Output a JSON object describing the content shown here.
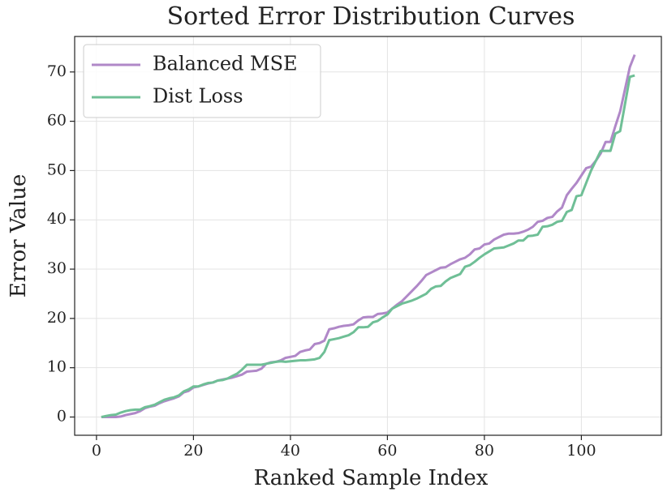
{
  "chart_data": {
    "type": "line",
    "title": "Sorted Error Distribution Curves",
    "xlabel": "Ranked Sample Index",
    "ylabel": "Error Value",
    "x": [
      1,
      2,
      3,
      4,
      5,
      6,
      7,
      8,
      9,
      10,
      11,
      12,
      13,
      14,
      15,
      16,
      17,
      18,
      19,
      20,
      21,
      22,
      23,
      24,
      25,
      26,
      27,
      28,
      29,
      30,
      31,
      32,
      33,
      34,
      35,
      36,
      37,
      38,
      39,
      40,
      41,
      42,
      43,
      44,
      45,
      46,
      47,
      48,
      49,
      50,
      51,
      52,
      53,
      54,
      55,
      56,
      57,
      58,
      59,
      60,
      61,
      62,
      63,
      64,
      65,
      66,
      67,
      68,
      69,
      70,
      71,
      72,
      73,
      74,
      75,
      76,
      77,
      78,
      79,
      80,
      81,
      82,
      83,
      84,
      85,
      86,
      87,
      88,
      89,
      90,
      91,
      92,
      93,
      94,
      95,
      96,
      97,
      98,
      99,
      100,
      101,
      102,
      103,
      104,
      105,
      106,
      107,
      108,
      109,
      110,
      111
    ],
    "series": [
      {
        "name": "Balanced MSE",
        "color": "#b088c8",
        "values": [
          0,
          0,
          0,
          0,
          0.1,
          0.4,
          0.6,
          0.8,
          1.2,
          1.8,
          2.1,
          2.3,
          2.8,
          3.2,
          3.5,
          3.8,
          4.2,
          5.0,
          5.3,
          6.0,
          6.2,
          6.5,
          6.8,
          7.0,
          7.4,
          7.6,
          7.8,
          8.0,
          8.3,
          8.6,
          9.2,
          9.3,
          9.4,
          9.8,
          10.8,
          11.1,
          11.2,
          11.5,
          12.0,
          12.2,
          12.4,
          13.2,
          13.5,
          13.7,
          14.8,
          15.0,
          15.5,
          17.8,
          18.0,
          18.3,
          18.5,
          18.6,
          18.8,
          19.6,
          20.2,
          20.3,
          20.3,
          20.9,
          21.0,
          21.2,
          22.0,
          22.8,
          23.5,
          24.5,
          25.5,
          26.5,
          27.6,
          28.8,
          29.3,
          29.8,
          30.3,
          30.4,
          31.0,
          31.5,
          32.0,
          32.3,
          33.0,
          34.0,
          34.2,
          35.0,
          35.2,
          36.0,
          36.5,
          37.0,
          37.2,
          37.2,
          37.3,
          37.6,
          38.0,
          38.6,
          39.6,
          39.8,
          40.4,
          40.6,
          41.7,
          42.5,
          45.0,
          46.3,
          47.5,
          49.0,
          50.5,
          50.8,
          52.0,
          53.5,
          55.8,
          55.8,
          59.0,
          62.0,
          66.5,
          71.0,
          73.5
        ]
      },
      {
        "name": "Dist Loss",
        "color": "#6fbf96",
        "values": [
          0,
          0.2,
          0.4,
          0.5,
          0.9,
          1.2,
          1.4,
          1.5,
          1.5,
          2.0,
          2.2,
          2.5,
          3.0,
          3.5,
          3.8,
          4.0,
          4.4,
          5.2,
          5.6,
          6.2,
          6.2,
          6.6,
          6.9,
          7.0,
          7.4,
          7.5,
          7.8,
          8.3,
          8.8,
          9.6,
          10.6,
          10.6,
          10.6,
          10.6,
          10.8,
          11.0,
          11.2,
          11.3,
          11.2,
          11.3,
          11.4,
          11.5,
          11.5,
          11.6,
          11.7,
          12.0,
          13.2,
          15.6,
          15.8,
          16.0,
          16.3,
          16.6,
          17.2,
          18.2,
          18.2,
          18.3,
          19.2,
          19.5,
          20.2,
          20.8,
          22.0,
          22.5,
          23.0,
          23.3,
          23.6,
          24.0,
          24.5,
          25.0,
          26.0,
          26.5,
          26.6,
          27.5,
          28.2,
          28.6,
          29.0,
          30.5,
          30.8,
          31.5,
          32.3,
          33.0,
          33.6,
          34.2,
          34.3,
          34.4,
          34.8,
          35.2,
          35.8,
          35.8,
          36.7,
          36.8,
          37.0,
          38.6,
          38.7,
          39.0,
          39.6,
          39.8,
          41.6,
          42.0,
          44.8,
          45.0,
          47.5,
          50.0,
          52.0,
          54.0,
          54.0,
          54.0,
          57.5,
          58.0,
          63.5,
          69.0,
          69.3
        ]
      }
    ],
    "xlim": [
      -4.5,
      116.5
    ],
    "ylim": [
      -3.7,
      77.2
    ],
    "xticks": [
      0,
      20,
      40,
      60,
      80,
      100
    ],
    "yticks": [
      0,
      10,
      20,
      30,
      40,
      50,
      60,
      70
    ],
    "grid": true,
    "legend": "upper left"
  }
}
